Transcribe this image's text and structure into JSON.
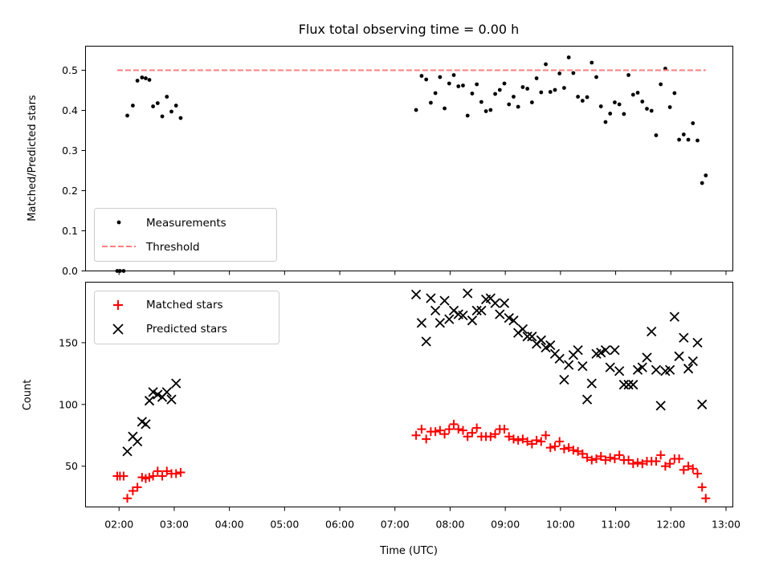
{
  "figure": {
    "title": "Flux total observing time = 0.00 h"
  },
  "chart_data": [
    {
      "type": "scatter",
      "panel": "top",
      "title": "Flux total observing time = 0.00 h",
      "xlabel": "",
      "ylabel": "Matched/Predicted stars",
      "xlim": [
        "01:24",
        "13:07"
      ],
      "ylim": [
        0,
        0.56
      ],
      "yticks": [
        0,
        0.1,
        0.2,
        0.3,
        0.4,
        0.5
      ],
      "ytick_labels": [
        "0.0",
        "0.1",
        "0.2",
        "0.3",
        "0.4",
        "0.5"
      ],
      "grid": false,
      "legend": {
        "placement": "lower-left",
        "entries": [
          "Measurements",
          "Threshold"
        ]
      },
      "series": [
        {
          "name": "Measurements",
          "kind": "points",
          "color": "#000000",
          "points": [
            [
              "01:58",
              0.0
            ],
            [
              "02:01",
              0.0
            ],
            [
              "02:05",
              0.0
            ],
            [
              "02:09",
              0.387
            ],
            [
              "02:15",
              0.412
            ],
            [
              "02:20",
              0.474
            ],
            [
              "02:25",
              0.482
            ],
            [
              "02:29",
              0.48
            ],
            [
              "02:33",
              0.476
            ],
            [
              "02:37",
              0.41
            ],
            [
              "02:42",
              0.418
            ],
            [
              "02:47",
              0.385
            ],
            [
              "02:52",
              0.434
            ],
            [
              "02:57",
              0.397
            ],
            [
              "03:02",
              0.412
            ],
            [
              "03:07",
              0.381
            ],
            [
              "07:23",
              0.401
            ],
            [
              "07:29",
              0.486
            ],
            [
              "07:34",
              0.477
            ],
            [
              "07:39",
              0.419
            ],
            [
              "07:44",
              0.443
            ],
            [
              "07:49",
              0.483
            ],
            [
              "07:54",
              0.405
            ],
            [
              "07:59",
              0.467
            ],
            [
              "08:04",
              0.488
            ],
            [
              "08:09",
              0.46
            ],
            [
              "08:14",
              0.462
            ],
            [
              "08:19",
              0.387
            ],
            [
              "08:24",
              0.442
            ],
            [
              "08:29",
              0.465
            ],
            [
              "08:34",
              0.421
            ],
            [
              "08:39",
              0.398
            ],
            [
              "08:44",
              0.401
            ],
            [
              "08:49",
              0.441
            ],
            [
              "08:54",
              0.451
            ],
            [
              "08:59",
              0.467
            ],
            [
              "09:04",
              0.415
            ],
            [
              "09:09",
              0.434
            ],
            [
              "09:14",
              0.409
            ],
            [
              "09:19",
              0.458
            ],
            [
              "09:24",
              0.454
            ],
            [
              "09:29",
              0.42
            ],
            [
              "09:34",
              0.48
            ],
            [
              "09:39",
              0.445
            ],
            [
              "09:44",
              0.515
            ],
            [
              "09:49",
              0.446
            ],
            [
              "09:54",
              0.451
            ],
            [
              "09:59",
              0.492
            ],
            [
              "10:04",
              0.456
            ],
            [
              "10:09",
              0.532
            ],
            [
              "10:14",
              0.493
            ],
            [
              "10:19",
              0.434
            ],
            [
              "10:24",
              0.424
            ],
            [
              "10:29",
              0.433
            ],
            [
              "10:34",
              0.519
            ],
            [
              "10:39",
              0.483
            ],
            [
              "10:44",
              0.41
            ],
            [
              "10:49",
              0.371
            ],
            [
              "10:54",
              0.392
            ],
            [
              "10:59",
              0.42
            ],
            [
              "11:04",
              0.415
            ],
            [
              "11:09",
              0.391
            ],
            [
              "11:14",
              0.488
            ],
            [
              "11:19",
              0.439
            ],
            [
              "11:24",
              0.444
            ],
            [
              "11:29",
              0.422
            ],
            [
              "11:34",
              0.404
            ],
            [
              "11:39",
              0.399
            ],
            [
              "11:44",
              0.338
            ],
            [
              "11:49",
              0.465
            ],
            [
              "11:54",
              0.504
            ],
            [
              "11:59",
              0.408
            ],
            [
              "12:04",
              0.443
            ],
            [
              "12:09",
              0.327
            ],
            [
              "12:14",
              0.34
            ],
            [
              "12:19",
              0.327
            ],
            [
              "12:24",
              0.368
            ],
            [
              "12:29",
              0.325
            ],
            [
              "12:34",
              0.219
            ],
            [
              "12:38",
              0.238
            ]
          ]
        },
        {
          "name": "Threshold",
          "kind": "dashed-line",
          "color": "#ff7f7f",
          "points": [
            [
              "01:58",
              0.5
            ],
            [
              "12:38",
              0.5
            ]
          ]
        }
      ]
    },
    {
      "type": "scatter",
      "panel": "bottom",
      "xlabel": "Time (UTC)",
      "ylabel": "Count",
      "xlim": [
        "01:24",
        "13:07"
      ],
      "ylim": [
        17,
        199
      ],
      "yticks": [
        50,
        100,
        150
      ],
      "ytick_labels": [
        "50",
        "100",
        "150"
      ],
      "xticks": [
        "02:00",
        "03:00",
        "04:00",
        "05:00",
        "06:00",
        "07:00",
        "08:00",
        "09:00",
        "10:00",
        "11:00",
        "12:00",
        "13:00"
      ],
      "xtick_labels": [
        "02:00",
        "03:00",
        "04:00",
        "05:00",
        "06:00",
        "07:00",
        "08:00",
        "09:00",
        "10:00",
        "11:00",
        "12:00",
        "13:00"
      ],
      "grid": false,
      "legend": {
        "placement": "top-left",
        "entries": [
          "Matched stars",
          "Predicted stars"
        ]
      },
      "series": [
        {
          "name": "Matched stars",
          "marker": "plus",
          "color": "#ff0000",
          "points": [
            [
              "01:58",
              42
            ],
            [
              "02:01",
              42
            ],
            [
              "02:05",
              42
            ],
            [
              "02:09",
              24
            ],
            [
              "02:15",
              30
            ],
            [
              "02:20",
              33
            ],
            [
              "02:25",
              41
            ],
            [
              "02:29",
              40
            ],
            [
              "02:33",
              41
            ],
            [
              "02:37",
              42
            ],
            [
              "02:42",
              46
            ],
            [
              "02:47",
              42
            ],
            [
              "02:52",
              46
            ],
            [
              "02:57",
              44
            ],
            [
              "03:02",
              44
            ],
            [
              "03:07",
              45
            ],
            [
              "07:23",
              75
            ],
            [
              "07:29",
              80
            ],
            [
              "07:34",
              72
            ],
            [
              "07:39",
              78
            ],
            [
              "07:44",
              78
            ],
            [
              "07:49",
              79
            ],
            [
              "07:54",
              76
            ],
            [
              "07:59",
              80
            ],
            [
              "08:04",
              84
            ],
            [
              "08:09",
              80
            ],
            [
              "08:14",
              79
            ],
            [
              "08:19",
              74
            ],
            [
              "08:24",
              77
            ],
            [
              "08:29",
              81
            ],
            [
              "08:34",
              74
            ],
            [
              "08:39",
              74
            ],
            [
              "08:44",
              74
            ],
            [
              "08:49",
              76
            ],
            [
              "08:54",
              80
            ],
            [
              "08:59",
              80
            ],
            [
              "09:04",
              74
            ],
            [
              "09:09",
              72
            ],
            [
              "09:14",
              71
            ],
            [
              "09:19",
              72
            ],
            [
              "09:24",
              70
            ],
            [
              "09:29",
              68
            ],
            [
              "09:34",
              71
            ],
            [
              "09:39",
              70
            ],
            [
              "09:44",
              75
            ],
            [
              "09:49",
              65
            ],
            [
              "09:54",
              66
            ],
            [
              "09:59",
              70
            ],
            [
              "10:04",
              64
            ],
            [
              "10:09",
              65
            ],
            [
              "10:14",
              63
            ],
            [
              "10:19",
              62
            ],
            [
              "10:24",
              60
            ],
            [
              "10:29",
              57
            ],
            [
              "10:34",
              55
            ],
            [
              "10:39",
              56
            ],
            [
              "10:44",
              58
            ],
            [
              "10:49",
              55
            ],
            [
              "10:54",
              57
            ],
            [
              "10:59",
              56
            ],
            [
              "11:04",
              59
            ],
            [
              "11:09",
              55
            ],
            [
              "11:14",
              55
            ],
            [
              "11:19",
              52
            ],
            [
              "11:24",
              53
            ],
            [
              "11:29",
              52
            ],
            [
              "11:34",
              54
            ],
            [
              "11:39",
              54
            ],
            [
              "11:44",
              54
            ],
            [
              "11:49",
              59
            ],
            [
              "11:54",
              50
            ],
            [
              "11:59",
              52
            ],
            [
              "12:04",
              56
            ],
            [
              "12:09",
              56
            ],
            [
              "12:14",
              47
            ],
            [
              "12:19",
              50
            ],
            [
              "12:24",
              48
            ],
            [
              "12:29",
              44
            ],
            [
              "12:34",
              33
            ],
            [
              "12:38",
              24
            ]
          ]
        },
        {
          "name": "Predicted stars",
          "marker": "x",
          "color": "#000000",
          "points": [
            [
              "02:09",
              62
            ],
            [
              "02:15",
              74
            ],
            [
              "02:20",
              70
            ],
            [
              "02:25",
              86
            ],
            [
              "02:29",
              84
            ],
            [
              "02:33",
              103
            ],
            [
              "02:37",
              110
            ],
            [
              "02:42",
              108
            ],
            [
              "02:47",
              106
            ],
            [
              "02:52",
              110
            ],
            [
              "02:57",
              104
            ],
            [
              "03:02",
              117
            ],
            [
              "07:23",
              189
            ],
            [
              "07:29",
              166
            ],
            [
              "07:34",
              151
            ],
            [
              "07:39",
              186
            ],
            [
              "07:44",
              176
            ],
            [
              "07:49",
              166
            ],
            [
              "07:54",
              184
            ],
            [
              "07:59",
              169
            ],
            [
              "08:04",
              176
            ],
            [
              "08:09",
              173
            ],
            [
              "08:14",
              172
            ],
            [
              "08:19",
              190
            ],
            [
              "08:24",
              168
            ],
            [
              "08:29",
              176
            ],
            [
              "08:34",
              176
            ],
            [
              "08:39",
              185
            ],
            [
              "08:44",
              186
            ],
            [
              "08:49",
              182
            ],
            [
              "08:54",
              173
            ],
            [
              "08:59",
              182
            ],
            [
              "09:04",
              170
            ],
            [
              "09:09",
              168
            ],
            [
              "09:14",
              158
            ],
            [
              "09:19",
              161
            ],
            [
              "09:24",
              155
            ],
            [
              "09:29",
              155
            ],
            [
              "09:34",
              149
            ],
            [
              "09:39",
              152
            ],
            [
              "09:44",
              146
            ],
            [
              "09:49",
              148
            ],
            [
              "09:54",
              141
            ],
            [
              "09:59",
              137
            ],
            [
              "10:04",
              120
            ],
            [
              "10:09",
              132
            ],
            [
              "10:14",
              140
            ],
            [
              "10:19",
              144
            ],
            [
              "10:24",
              131
            ],
            [
              "10:29",
              104
            ],
            [
              "10:34",
              117
            ],
            [
              "10:39",
              141
            ],
            [
              "10:44",
              142
            ],
            [
              "10:49",
              144
            ],
            [
              "10:54",
              130
            ],
            [
              "10:59",
              144
            ],
            [
              "11:04",
              127
            ],
            [
              "11:09",
              116
            ],
            [
              "11:14",
              116
            ],
            [
              "11:19",
              116
            ],
            [
              "11:24",
              128
            ],
            [
              "11:29",
              130
            ],
            [
              "11:34",
              138
            ],
            [
              "11:39",
              159
            ],
            [
              "11:44",
              128
            ],
            [
              "11:49",
              99
            ],
            [
              "11:54",
              127
            ],
            [
              "11:59",
              128
            ],
            [
              "12:04",
              171
            ],
            [
              "12:09",
              139
            ],
            [
              "12:14",
              154
            ],
            [
              "12:19",
              129
            ],
            [
              "12:24",
              135
            ],
            [
              "12:29",
              150
            ],
            [
              "12:34",
              100
            ]
          ]
        }
      ]
    }
  ]
}
